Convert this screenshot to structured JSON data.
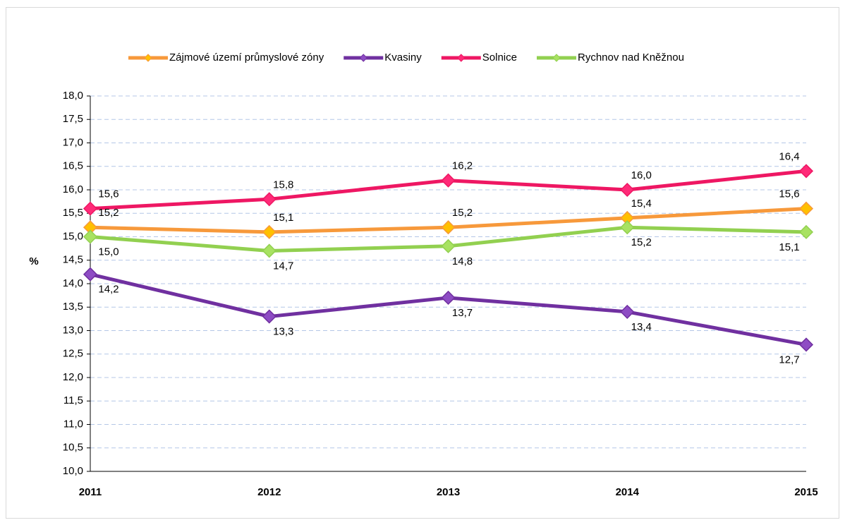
{
  "chart_data": {
    "type": "line",
    "categories": [
      "2011",
      "2012",
      "2013",
      "2014",
      "2015"
    ],
    "ylabel": "%",
    "ylim": [
      10,
      18
    ],
    "yticks": [
      {
        "value": 10,
        "label": "10,0"
      },
      {
        "value": 10.5,
        "label": "10,5"
      },
      {
        "value": 11,
        "label": "11,0"
      },
      {
        "value": 11.5,
        "label": "11,5"
      },
      {
        "value": 12,
        "label": "12,0"
      },
      {
        "value": 12.5,
        "label": "12,5"
      },
      {
        "value": 13,
        "label": "13,0"
      },
      {
        "value": 13.5,
        "label": "13,5"
      },
      {
        "value": 14,
        "label": "14,0"
      },
      {
        "value": 14.5,
        "label": "14,5"
      },
      {
        "value": 15,
        "label": "15,0"
      },
      {
        "value": 15.5,
        "label": "15,5"
      },
      {
        "value": 16,
        "label": "16,0"
      },
      {
        "value": 16.5,
        "label": "16,5"
      },
      {
        "value": 17,
        "label": "17,0"
      },
      {
        "value": 17.5,
        "label": "17,5"
      },
      {
        "value": 18,
        "label": "18,0"
      }
    ],
    "grid": true,
    "legend": "top",
    "series": [
      {
        "name": "Zájmové území průmyslové zóny",
        "color": "#f7993b",
        "marker_color": "#ffc000",
        "values": [
          15.2,
          15.1,
          15.2,
          15.4,
          15.6
        ],
        "value_labels": [
          "15,2",
          "15,1",
          "15,2",
          "15,4",
          "15,6"
        ]
      },
      {
        "name": "Kvasiny",
        "color": "#7030a0",
        "marker_color": "#8e4cc4",
        "values": [
          14.2,
          13.3,
          13.7,
          13.4,
          12.7
        ],
        "value_labels": [
          "14,2",
          "13,3",
          "13,7",
          "13,4",
          "12,7"
        ]
      },
      {
        "name": "Solnice",
        "color": "#ee1763",
        "marker_color": "#ff2a78",
        "values": [
          15.6,
          15.8,
          16.2,
          16.0,
          16.4
        ],
        "value_labels": [
          "15,6",
          "15,8",
          "16,2",
          "16,0",
          "16,4"
        ]
      },
      {
        "name": "Rychnov nad Kněžnou",
        "color": "#92d050",
        "marker_color": "#a8e262",
        "values": [
          15.0,
          14.7,
          14.8,
          15.2,
          15.1
        ],
        "value_labels": [
          "15,0",
          "14,7",
          "14,8",
          "15,2",
          "15,1"
        ]
      }
    ]
  }
}
